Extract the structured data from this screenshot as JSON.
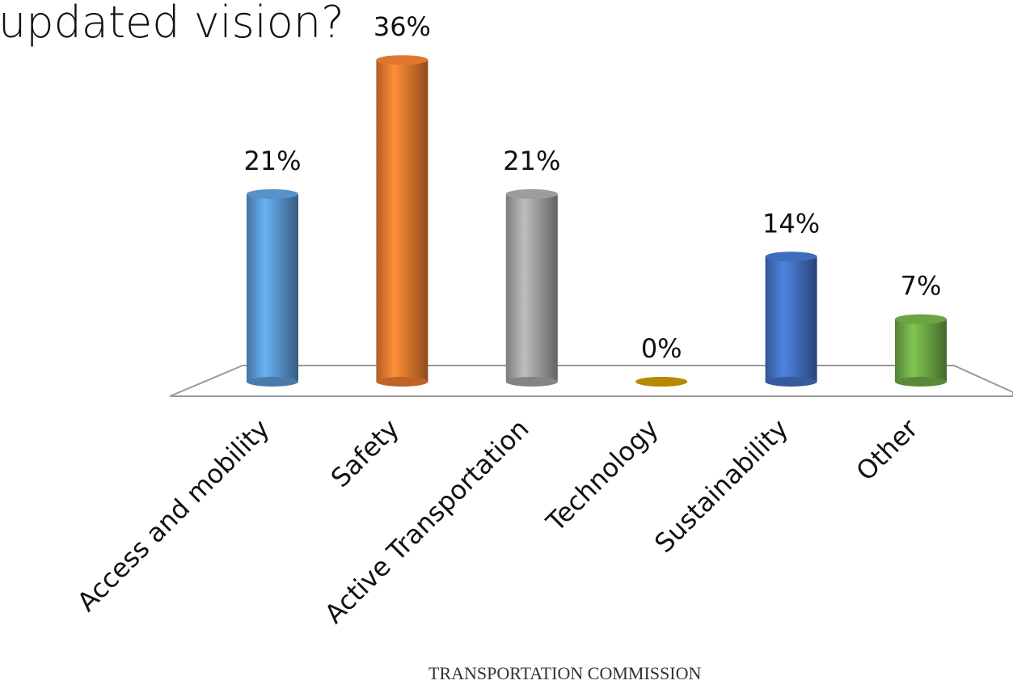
{
  "chart_data": {
    "type": "bar",
    "title": "updated vision?",
    "categories": [
      "Access and mobility",
      "Safety",
      "Active Transportation",
      "Technology",
      "Sustainability",
      "Other"
    ],
    "values": [
      21,
      36,
      21,
      0,
      14,
      7
    ],
    "value_labels": [
      "21%",
      "36%",
      "21%",
      "0%",
      "14%",
      "7%"
    ],
    "colors": [
      "#5b9bd5",
      "#ed7d31",
      "#a5a5a5",
      "#c09000",
      "#4472c4",
      "#70ad47"
    ],
    "footer": "TRANSPORTATION COMMISSION"
  }
}
